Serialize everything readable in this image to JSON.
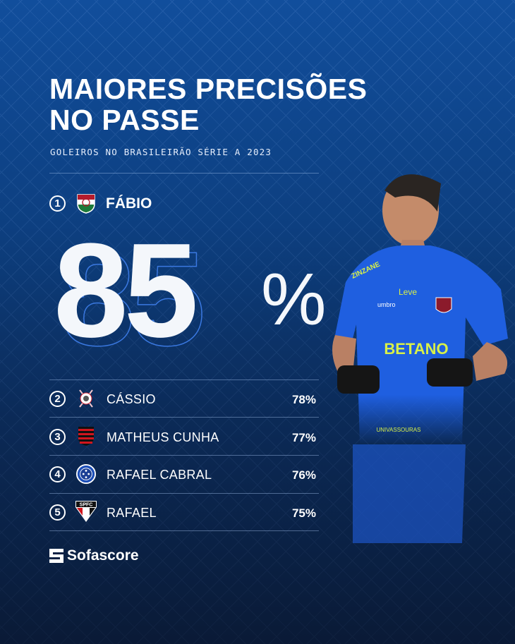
{
  "title_line1": "MAIORES PRECISÕES",
  "title_line2": "NO PASSE",
  "subtitle": "GOLEIROS NO BRASILEIRÃO SÉRIE A 2023",
  "leader": {
    "rank": "1",
    "name": "FÁBIO",
    "value": "85",
    "unit": "%",
    "club": "Fluminense"
  },
  "rows": [
    {
      "rank": "2",
      "name": "CÁSSIO",
      "value": "78%",
      "club": "Corinthians"
    },
    {
      "rank": "3",
      "name": "MATHEUS CUNHA",
      "value": "77%",
      "club": "Flamengo"
    },
    {
      "rank": "4",
      "name": "RAFAEL CABRAL",
      "value": "76%",
      "club": "Cruzeiro"
    },
    {
      "rank": "5",
      "name": "RAFAEL",
      "value": "75%",
      "club": "São Paulo",
      "crest_text": "SPFC"
    }
  ],
  "brand": "Sofascore",
  "jersey": {
    "sponsor": "BETANO",
    "maker": "umbro",
    "kit": "ZINZANE",
    "chest": "Leve",
    "sleeve": "UNIVASSOURAS"
  },
  "colors": {
    "bg_top": "#114e9c",
    "bg_bottom": "#0a1a36",
    "jersey": "#1f5fe0",
    "accent": "#c6f03c"
  }
}
